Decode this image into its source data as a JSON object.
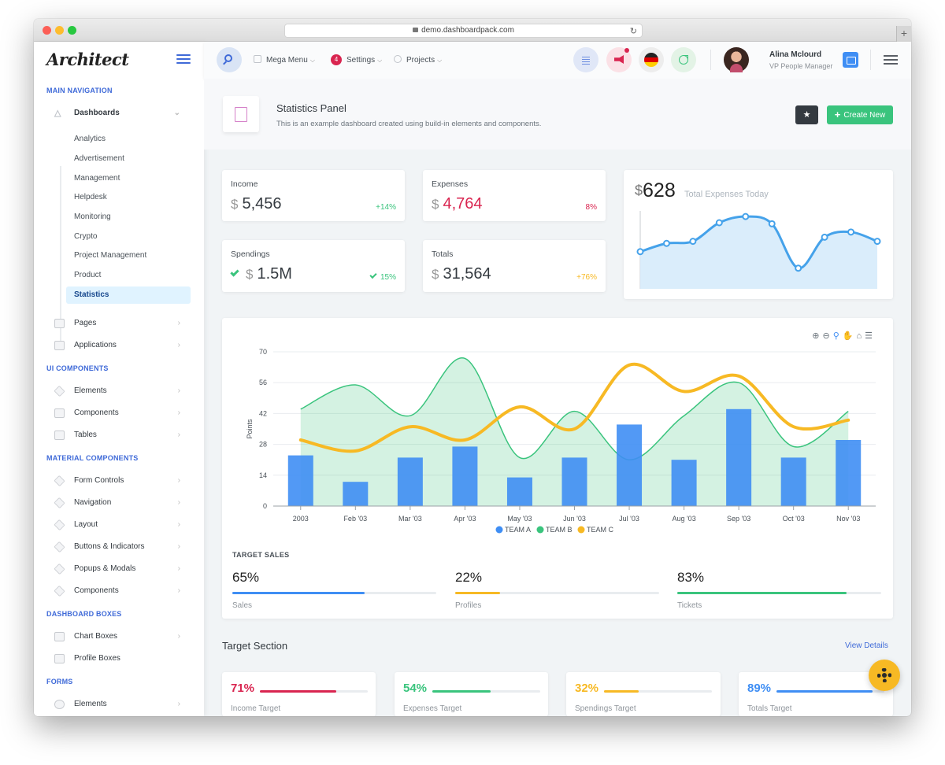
{
  "browser": {
    "url": "demo.dashboardpack.com"
  },
  "sidebar": {
    "logo": "Architect",
    "headings": {
      "main": "MAIN NAVIGATION",
      "ui": "UI COMPONENTS",
      "material": "MATERIAL COMPONENTS",
      "boxes": "DASHBOARD BOXES",
      "forms": "FORMS"
    },
    "dashboards": "Dashboards",
    "sub_items": [
      "Analytics",
      "Advertisement",
      "Management",
      "Helpdesk",
      "Monitoring",
      "Crypto",
      "Project Management",
      "Product",
      "Statistics"
    ],
    "active_sub": "Statistics",
    "main_items": [
      "Pages",
      "Applications"
    ],
    "ui_items": [
      "Elements",
      "Components",
      "Tables"
    ],
    "material_items": [
      "Form Controls",
      "Navigation",
      "Layout",
      "Buttons & Indicators",
      "Popups & Modals",
      "Components"
    ],
    "boxes_items": [
      "Chart Boxes",
      "Profile Boxes"
    ],
    "forms_items": [
      "Elements"
    ]
  },
  "header": {
    "mega_menu": "Mega Menu",
    "settings": "Settings",
    "settings_badge": "4",
    "projects": "Projects",
    "user_name": "Alina Mclourd",
    "user_role": "VP People Manager"
  },
  "page": {
    "title": "Statistics Panel",
    "description": "This is an example dashboard created using build-in elements and components.",
    "create_button": "Create New"
  },
  "widgets": {
    "income": {
      "label": "Income",
      "currency": "$",
      "value": "5,456",
      "pct": "+14%"
    },
    "expenses": {
      "label": "Expenses",
      "currency": "$",
      "value": "4,764",
      "pct": "8%"
    },
    "spendings": {
      "label": "Spendings",
      "currency": "$",
      "value": "1.5M",
      "pct": "15%"
    },
    "totals": {
      "label": "Totals",
      "currency": "$",
      "value": "31,564",
      "pct": "+76%"
    },
    "today": {
      "currency": "$",
      "value": "628",
      "label": "Total Expenses Today"
    }
  },
  "colors": {
    "primary": "#3f6ad8",
    "success": "#3ac47d",
    "danger": "#d92550",
    "warning": "#f7b924",
    "info": "#3f8ef4"
  },
  "chart_data": [
    {
      "type": "area",
      "title": "",
      "values": [
        36,
        44,
        46,
        64,
        70,
        63,
        20,
        50,
        55,
        46
      ]
    },
    {
      "type": "bar",
      "title": "",
      "xlabel": "",
      "ylabel": "Points",
      "ylim": [
        0,
        70
      ],
      "yticks": [
        "0",
        "14",
        "28",
        "42",
        "56",
        "70"
      ],
      "categories": [
        "2003",
        "Feb '03",
        "Mar '03",
        "Apr '03",
        "May '03",
        "Jun '03",
        "Jul '03",
        "Aug '03",
        "Sep '03",
        "Oct '03",
        "Nov '03"
      ],
      "legend_position": "bottom",
      "series": [
        {
          "name": "TEAM A",
          "type": "bar",
          "color": "#3f8ef4",
          "values": [
            23,
            11,
            22,
            27,
            13,
            22,
            37,
            21,
            44,
            22,
            30
          ]
        },
        {
          "name": "TEAM B",
          "type": "area",
          "color": "#3ac47d",
          "values": [
            44,
            55,
            41,
            67,
            22,
            43,
            21,
            41,
            56,
            27,
            43
          ]
        },
        {
          "name": "TEAM C",
          "type": "line",
          "color": "#f7b924",
          "values": [
            30,
            25,
            36,
            30,
            45,
            35,
            64,
            52,
            59,
            36,
            39
          ]
        }
      ]
    }
  ],
  "target_sales": {
    "heading": "TARGET SALES",
    "items": [
      {
        "pct": "65%",
        "label": "Sales",
        "value": 65,
        "color": "#3f8ef4"
      },
      {
        "pct": "22%",
        "label": "Profiles",
        "value": 22,
        "color": "#f7b924"
      },
      {
        "pct": "83%",
        "label": "Tickets",
        "value": 83,
        "color": "#3ac47d"
      }
    ]
  },
  "target_section": {
    "title": "Target Section",
    "view_details": "View Details",
    "items": [
      {
        "pct": "71%",
        "label": "Income Target",
        "value": 71,
        "color": "#d92550"
      },
      {
        "pct": "54%",
        "label": "Expenses Target",
        "value": 54,
        "color": "#3ac47d"
      },
      {
        "pct": "32%",
        "label": "Spendings Target",
        "value": 32,
        "color": "#f7b924"
      },
      {
        "pct": "89%",
        "label": "Totals Target",
        "value": 89,
        "color": "#3f8ef4"
      }
    ]
  }
}
